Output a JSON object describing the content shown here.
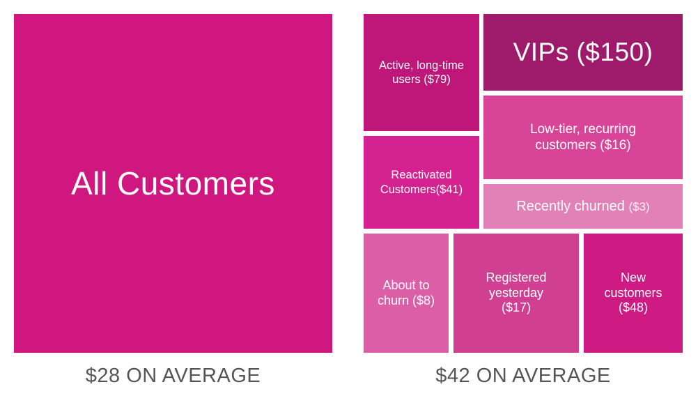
{
  "left_panel": {
    "segment": {
      "label": "All Customers",
      "color": "#cf177f"
    },
    "caption": "$28 ON AVERAGE"
  },
  "right_panel": {
    "segments": {
      "active": {
        "line1": "Active, long-time",
        "line2": "users ($79)",
        "color": "#bf1679"
      },
      "vips": {
        "label": "VIPs ($150)",
        "color": "#9e1a6a"
      },
      "low_tier": {
        "line1": "Low-tier, recurring",
        "line2": "customers ($16)",
        "color": "#d84497"
      },
      "reactivated": {
        "line1": "Reactivated",
        "line2": "Customers($41)",
        "color": "#d42390"
      },
      "churned": {
        "label": "Recently churned",
        "value": "($3)",
        "color": "#e280b8"
      },
      "about_to_churn": {
        "line1": "About to",
        "line2": "churn ($8)",
        "color": "#dc5ea6"
      },
      "registered": {
        "line1": "Registered",
        "line2": "yesterday",
        "line3": "($17)",
        "color": "#d03f92"
      },
      "new_customers": {
        "line1": "New",
        "line2": "customers",
        "line3": "($48)",
        "color": "#ce1b83"
      }
    },
    "caption": "$42 ON AVERAGE"
  }
}
